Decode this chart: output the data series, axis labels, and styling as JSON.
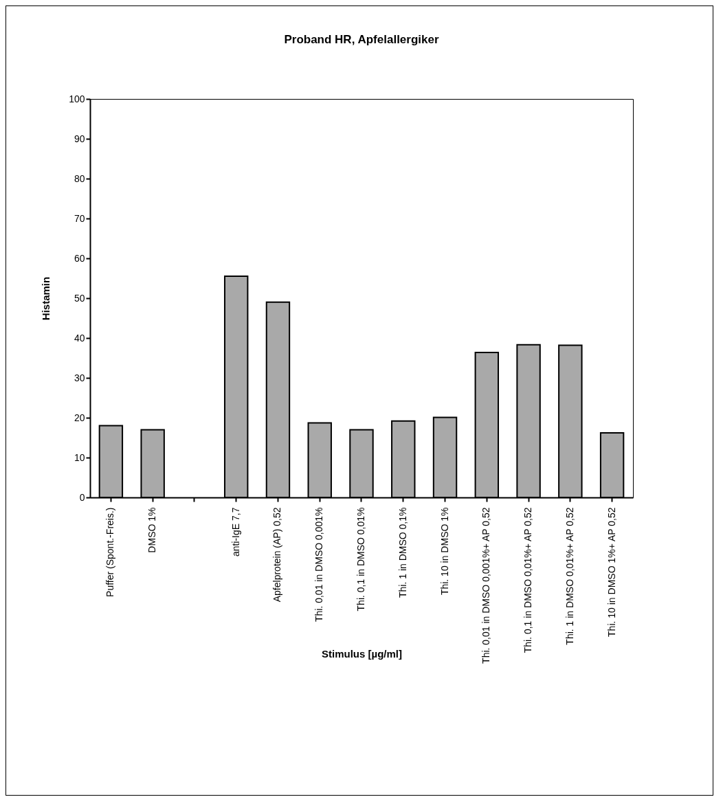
{
  "chart_data": {
    "type": "bar",
    "title": "Proband HR, Apfelallergiker",
    "xlabel": "Stimulus [µg/ml]",
    "ylabel": "Histamin",
    "categories": [
      "Puffer (Spont.-Freis.)",
      "DMSO 1%",
      null,
      "anti-IgE 7,7",
      "Apfelprotein (AP) 0,52",
      "Thi. 0,01 in DMSO 0,001%",
      "Thi. 0,1 in DMSO 0,01%",
      "Thi. 1 in DMSO 0,1%",
      "Thi. 10 in DMSO 1%",
      "Thi. 0,01 in DMSO 0,001%+ AP 0,52",
      "Thi. 0,1 in DMSO 0,01%+ AP 0,52",
      "Thi. 1 in DMSO 0,01%+ AP 0,52",
      "Thi. 10 in DMSO 1%+ AP 0,52"
    ],
    "values": [
      18,
      17,
      null,
      55.5,
      49,
      18.7,
      17,
      19.2,
      20.1,
      36.4,
      38.3,
      38.2,
      16.2
    ],
    "color": "#a9a9a9",
    "ylim": [
      0,
      100
    ],
    "yticks": [
      0,
      10,
      20,
      30,
      40,
      50,
      60,
      70,
      80,
      90,
      100
    ],
    "grid": false
  }
}
